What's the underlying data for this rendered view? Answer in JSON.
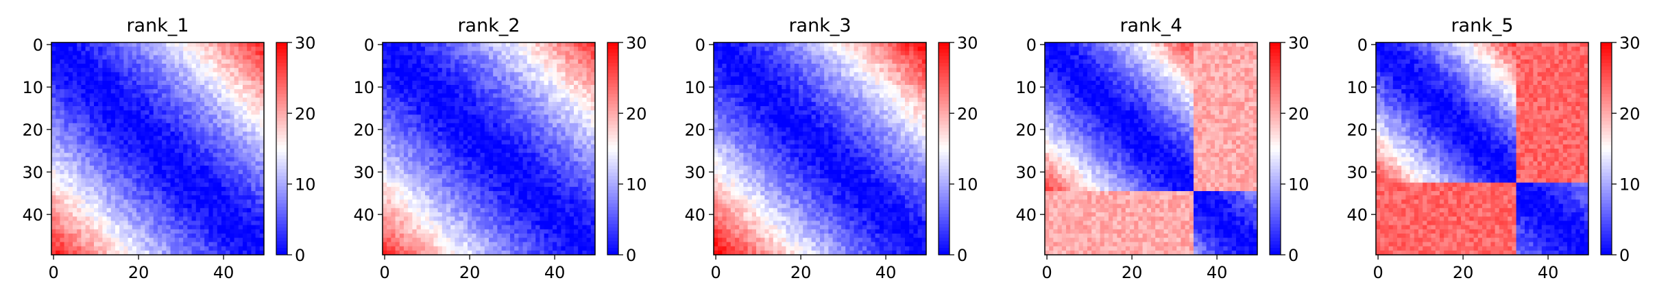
{
  "chart_data": [
    {
      "type": "heatmap",
      "title": "rank_1",
      "rows": 50,
      "cols": 50,
      "xticks": [
        "0",
        "20",
        "40"
      ],
      "yticks": [
        "0",
        "10",
        "20",
        "30",
        "40"
      ],
      "colorbar_ticks": [
        "0",
        "10",
        "20",
        "30"
      ],
      "vmin": 0,
      "vmax": 30,
      "colormap": "bwr",
      "colors": [
        "#0000ff",
        "#ffffff",
        "#ff0000"
      ],
      "segments": [
        {
          "start": 0,
          "end": 50,
          "off_diag_max": 28
        }
      ],
      "corner_bias": 0
    },
    {
      "type": "heatmap",
      "title": "rank_2",
      "rows": 50,
      "cols": 50,
      "xticks": [
        "0",
        "20",
        "40"
      ],
      "yticks": [
        "0",
        "10",
        "20",
        "30",
        "40"
      ],
      "colorbar_ticks": [
        "0",
        "10",
        "20",
        "30"
      ],
      "vmin": 0,
      "vmax": 30,
      "colormap": "bwr",
      "colors": [
        "#0000ff",
        "#ffffff",
        "#ff0000"
      ],
      "segments": [
        {
          "start": 0,
          "end": 50,
          "off_diag_max": 27
        }
      ],
      "corner_bias": 0
    },
    {
      "type": "heatmap",
      "title": "rank_3",
      "rows": 50,
      "cols": 50,
      "xticks": [
        "0",
        "20",
        "40"
      ],
      "yticks": [
        "0",
        "10",
        "20",
        "30",
        "40"
      ],
      "colorbar_ticks": [
        "0",
        "10",
        "20",
        "30"
      ],
      "vmin": 0,
      "vmax": 30,
      "colormap": "bwr",
      "colors": [
        "#0000ff",
        "#ffffff",
        "#ff0000"
      ],
      "segments": [
        {
          "start": 0,
          "end": 50,
          "off_diag_max": 28
        }
      ],
      "corner_bias": 2
    },
    {
      "type": "heatmap",
      "title": "rank_4",
      "rows": 50,
      "cols": 50,
      "xticks": [
        "0",
        "20",
        "40"
      ],
      "yticks": [
        "0",
        "10",
        "20",
        "30",
        "40"
      ],
      "colorbar_ticks": [
        "0",
        "10",
        "20",
        "30"
      ],
      "vmin": 0,
      "vmax": 30,
      "colormap": "bwr",
      "colors": [
        "#0000ff",
        "#ffffff",
        "#ff0000"
      ],
      "segments": [
        {
          "start": 0,
          "end": 35,
          "off_diag_max": 26
        },
        {
          "start": 35,
          "end": 50,
          "off_diag_max": 8
        }
      ],
      "cross_segment_value": 20,
      "corner_bias": 0
    },
    {
      "type": "heatmap",
      "title": "rank_5",
      "rows": 50,
      "cols": 50,
      "xticks": [
        "0",
        "20",
        "40"
      ],
      "yticks": [
        "0",
        "10",
        "20",
        "30",
        "40"
      ],
      "colorbar_ticks": [
        "0",
        "10",
        "20",
        "30"
      ],
      "vmin": 0,
      "vmax": 30,
      "colormap": "bwr",
      "colors": [
        "#0000ff",
        "#ffffff",
        "#ff0000"
      ],
      "segments": [
        {
          "start": 0,
          "end": 33,
          "off_diag_max": 26
        },
        {
          "start": 33,
          "end": 50,
          "off_diag_max": 7
        }
      ],
      "cross_segment_value": 24,
      "corner_bias": 0
    }
  ]
}
